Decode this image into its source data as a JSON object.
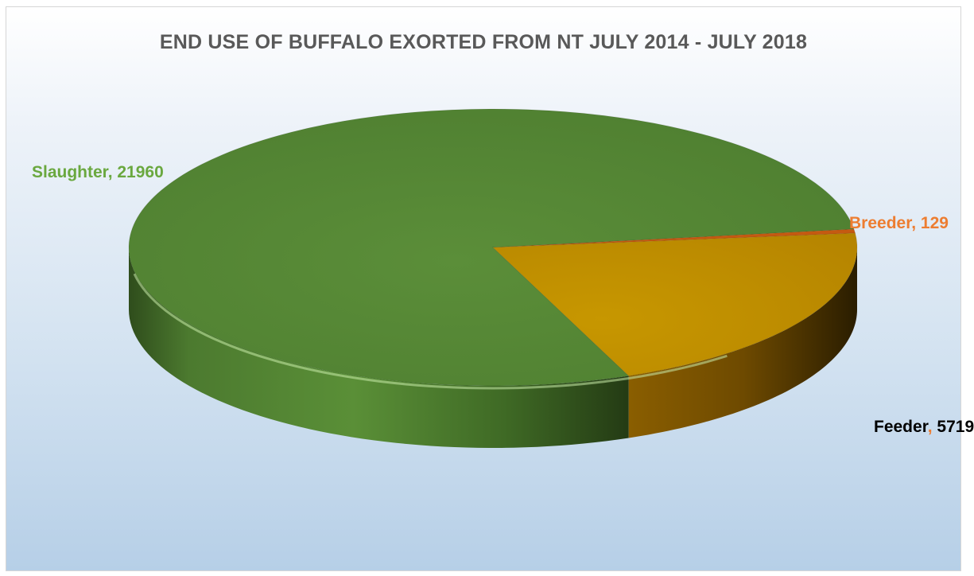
{
  "chart_data": {
    "type": "pie",
    "title": "END USE OF BUFFALO EXORTED FROM NT JULY 2014 - JULY 2018",
    "categories": [
      "Slaughter",
      "Breeder",
      "Feeder"
    ],
    "values": [
      21960,
      129,
      5719
    ],
    "colors": {
      "Slaughter": "#548235",
      "Breeder": "#c55a11",
      "Feeder": "#bf9000"
    },
    "labels": [
      {
        "category": "Slaughter",
        "value": "21960",
        "color": "#6aa83f"
      },
      {
        "category": "Breeder",
        "value": "129",
        "color": "#ed7d31"
      },
      {
        "category": "Feeder",
        "value": "5719",
        "color": "#000000"
      }
    ],
    "style": "3d"
  }
}
